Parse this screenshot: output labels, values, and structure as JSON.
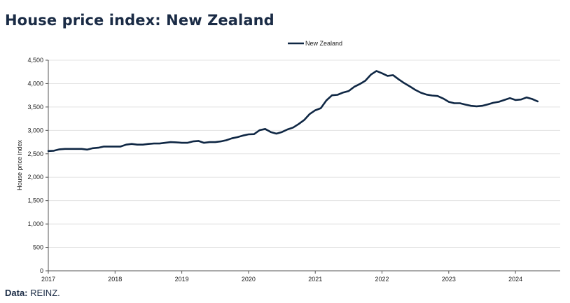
{
  "header": {
    "title": "House price index: New Zealand"
  },
  "footer": {
    "source_label": "Data:",
    "source_value": "REINZ."
  },
  "colors": {
    "line": "#0f2744",
    "grid": "#e3e3e3",
    "axis": "#555555"
  },
  "chart_data": {
    "type": "line",
    "title": "House price index: New Zealand",
    "xlabel": "",
    "ylabel": "House price index",
    "xlim": [
      2017,
      2024.67
    ],
    "ylim": [
      0,
      4500
    ],
    "x_ticks": [
      2017,
      2018,
      2019,
      2020,
      2021,
      2022,
      2023,
      2024
    ],
    "y_ticks": [
      0,
      500,
      1000,
      1500,
      2000,
      2500,
      3000,
      3500,
      4000,
      4500
    ],
    "legend": {
      "position": "top-center",
      "entries": [
        "New Zealand"
      ]
    },
    "grid": true,
    "series": [
      {
        "name": "New Zealand",
        "x": [
          2017.0,
          2017.083,
          2017.167,
          2017.25,
          2017.333,
          2017.417,
          2017.5,
          2017.583,
          2017.667,
          2017.75,
          2017.833,
          2017.917,
          2018.0,
          2018.083,
          2018.167,
          2018.25,
          2018.333,
          2018.417,
          2018.5,
          2018.583,
          2018.667,
          2018.75,
          2018.833,
          2018.917,
          2019.0,
          2019.083,
          2019.167,
          2019.25,
          2019.333,
          2019.417,
          2019.5,
          2019.583,
          2019.667,
          2019.75,
          2019.833,
          2019.917,
          2020.0,
          2020.083,
          2020.167,
          2020.25,
          2020.333,
          2020.417,
          2020.5,
          2020.583,
          2020.667,
          2020.75,
          2020.833,
          2020.917,
          2021.0,
          2021.083,
          2021.167,
          2021.25,
          2021.333,
          2021.417,
          2021.5,
          2021.583,
          2021.667,
          2021.75,
          2021.833,
          2021.917,
          2022.0,
          2022.083,
          2022.167,
          2022.25,
          2022.333,
          2022.417,
          2022.5,
          2022.583,
          2022.667,
          2022.75,
          2022.833,
          2022.917,
          2023.0,
          2023.083,
          2023.167,
          2023.25,
          2023.333,
          2023.417,
          2023.5,
          2023.583,
          2023.667,
          2023.75,
          2023.833,
          2023.917,
          2024.0,
          2024.083,
          2024.167,
          2024.25,
          2024.333
        ],
        "values": [
          2560,
          2565,
          2595,
          2605,
          2605,
          2605,
          2605,
          2590,
          2620,
          2630,
          2655,
          2655,
          2655,
          2655,
          2695,
          2710,
          2695,
          2695,
          2710,
          2720,
          2720,
          2735,
          2750,
          2745,
          2735,
          2735,
          2765,
          2775,
          2735,
          2750,
          2750,
          2765,
          2790,
          2830,
          2855,
          2890,
          2915,
          2920,
          3005,
          3030,
          2965,
          2930,
          2965,
          3020,
          3060,
          3135,
          3220,
          3350,
          3430,
          3475,
          3640,
          3750,
          3760,
          3810,
          3840,
          3930,
          3990,
          4060,
          4190,
          4270,
          4220,
          4165,
          4180,
          4090,
          4010,
          3940,
          3865,
          3805,
          3765,
          3745,
          3735,
          3680,
          3610,
          3580,
          3580,
          3550,
          3525,
          3515,
          3525,
          3555,
          3590,
          3610,
          3650,
          3690,
          3650,
          3660,
          3705,
          3670,
          3620
        ]
      }
    ]
  }
}
